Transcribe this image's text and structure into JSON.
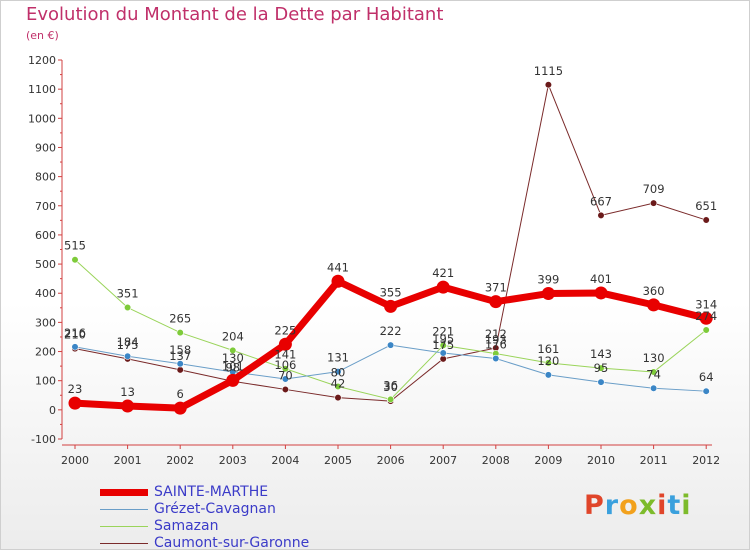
{
  "title": "Evolution du Montant de la Dette par Habitant",
  "subtitle": "(en €)",
  "logo": {
    "text": "Proxiti",
    "colors": [
      "#e0452a",
      "#3aa0dd",
      "#f2a11c",
      "#7dbb2b",
      "#e0452a",
      "#3aa0dd",
      "#7dbb2b"
    ]
  },
  "chart_data": {
    "type": "line",
    "categories": [
      "2000",
      "2001",
      "2002",
      "2003",
      "2004",
      "2005",
      "2006",
      "2007",
      "2008",
      "2009",
      "2010",
      "2011",
      "2012"
    ],
    "ylim": [
      -100,
      1200
    ],
    "yticks": [
      -100,
      0,
      100,
      200,
      300,
      400,
      500,
      600,
      700,
      800,
      900,
      1000,
      1100,
      1200
    ],
    "grid": false,
    "series": [
      {
        "name": "Caumont-sur-Garonne",
        "color": "#7a2a2a",
        "marker": "#6b1a1a",
        "width": 1,
        "values": [
          210,
          175,
          137,
          98,
          70,
          42,
          30,
          175,
          212,
          1115,
          667,
          709,
          651
        ],
        "labels": [
          "210",
          "175",
          "137",
          "98",
          "70",
          "42",
          "30",
          "175",
          "212",
          "1115",
          "667",
          "709",
          "651"
        ]
      },
      {
        "name": "Samazan",
        "color": "#9ad45a",
        "marker": "#7ecb3a",
        "width": 1,
        "values": [
          515,
          351,
          265,
          204,
          141,
          80,
          36,
          221,
          193,
          161,
          143,
          130,
          274
        ],
        "labels": [
          "515",
          "351",
          "265",
          "204",
          "141",
          "80",
          "36",
          "221",
          "193",
          "161",
          "143",
          "130",
          "274"
        ]
      },
      {
        "name": "Grézet-Cavagnan",
        "color": "#6a9ec8",
        "marker": "#3b86c6",
        "width": 1,
        "values": [
          216,
          184,
          158,
          130,
          106,
          131,
          222,
          195,
          176,
          120,
          95,
          74,
          64
        ],
        "labels": [
          "216",
          "184",
          "158",
          "130",
          "106",
          "131",
          "222",
          "195",
          "176",
          "120",
          "95",
          "74",
          "64"
        ]
      },
      {
        "name": "SAINTE-MARTHE",
        "color": "#e80000",
        "marker": "#e80000",
        "width": 7,
        "values": [
          23,
          13,
          6,
          101,
          225,
          441,
          355,
          421,
          371,
          399,
          401,
          360,
          314
        ],
        "labels": [
          "23",
          "13",
          "6",
          "101",
          "225",
          "441",
          "355",
          "421",
          "371",
          "399",
          "401",
          "360",
          "314"
        ]
      }
    ],
    "legend": [
      "SAINTE-MARTHE",
      "Grézet-Cavagnan",
      "Samazan",
      "Caumont-sur-Garonne"
    ]
  }
}
